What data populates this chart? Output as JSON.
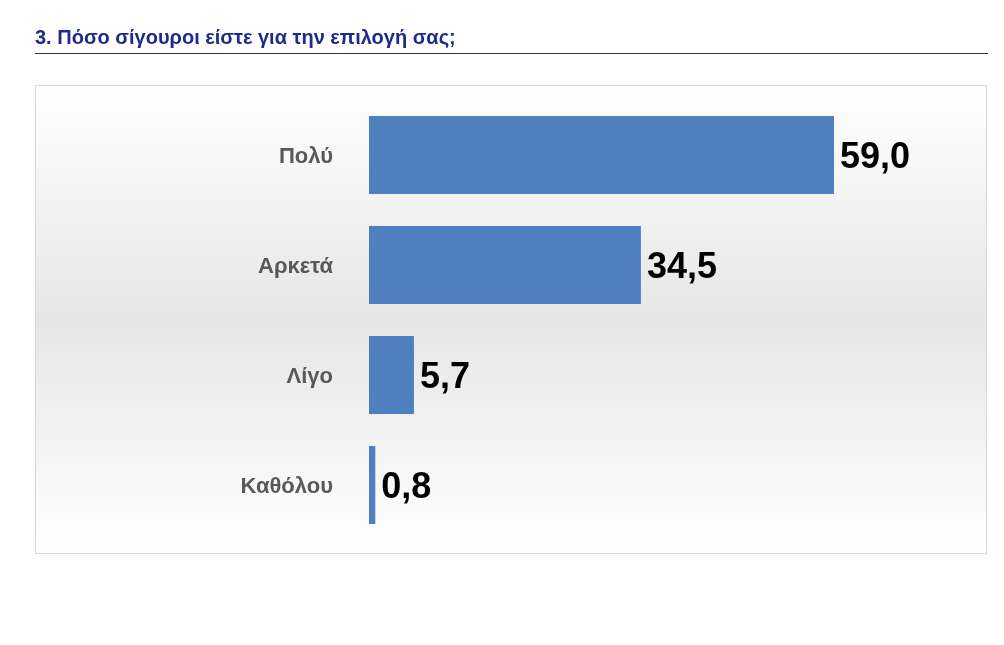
{
  "chart_data": {
    "type": "bar",
    "orientation": "horizontal",
    "title": "3. Πόσο σίγουροι είστε για την επιλογή σας;",
    "categories": [
      "Πολύ",
      "Αρκετά",
      "Λίγο",
      "Καθόλου"
    ],
    "values": [
      59.0,
      34.5,
      5.7,
      0.8
    ],
    "value_labels": [
      "59,0",
      "34,5",
      "5,7",
      "0,8"
    ],
    "color": "#4f7fbe"
  }
}
